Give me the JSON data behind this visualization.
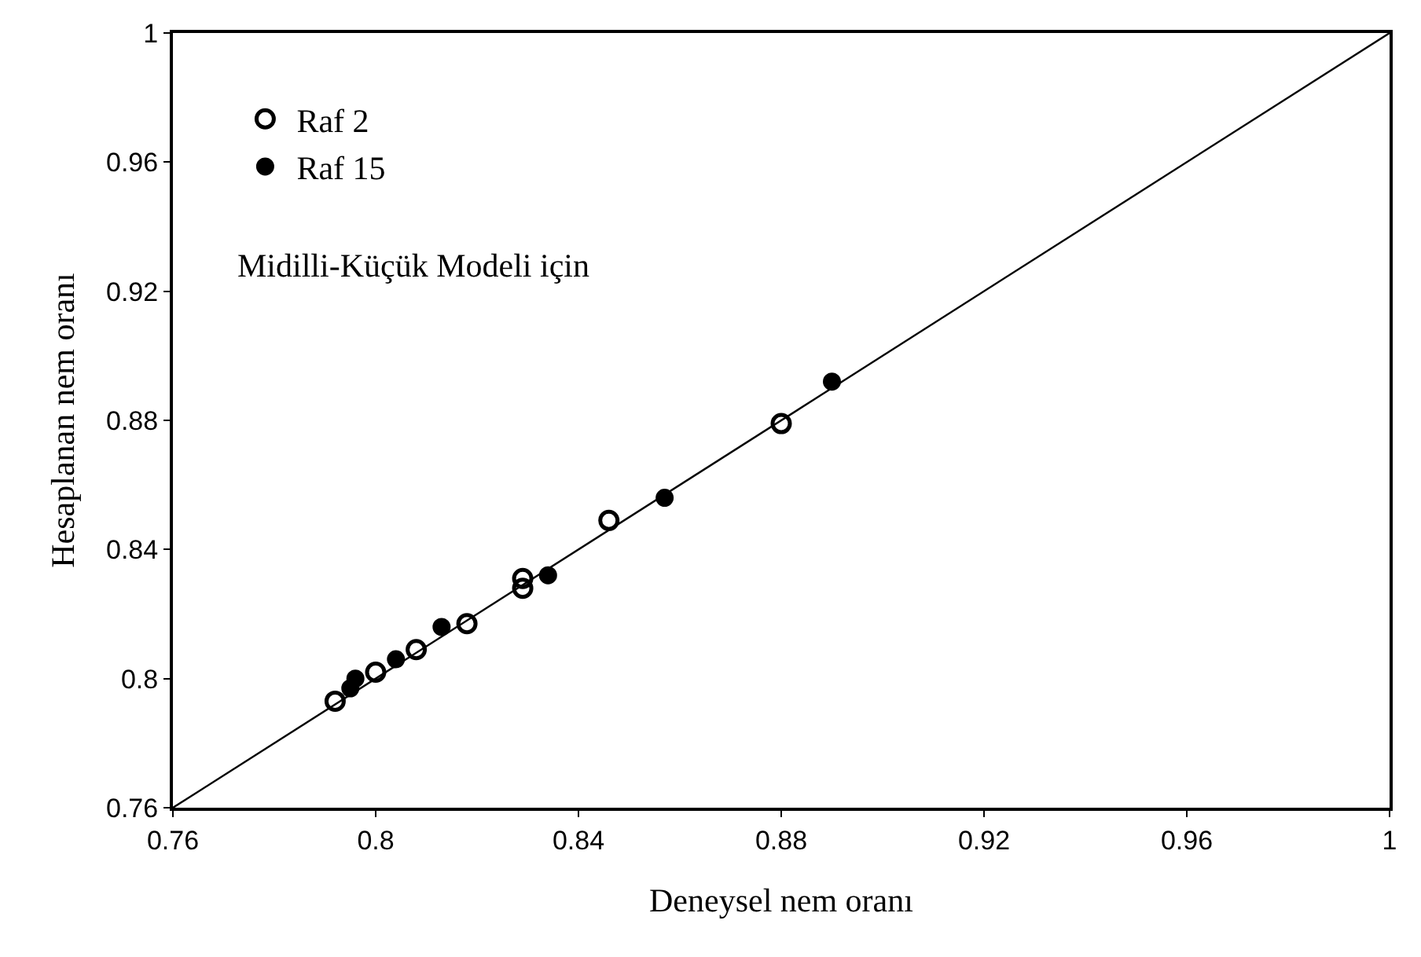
{
  "chart_data": {
    "type": "scatter",
    "xlabel": "Deneysel nem oranı",
    "ylabel": "Hesaplanan nem oranı",
    "annotations": [
      "Midilli-Küçük Modeli için"
    ],
    "xlim": [
      0.76,
      1
    ],
    "ylim": [
      0.76,
      1
    ],
    "xticks": [
      0.76,
      0.8,
      0.84,
      0.88,
      0.92,
      0.96,
      1
    ],
    "yticks": [
      0.76,
      0.8,
      0.84,
      0.88,
      0.92,
      0.96,
      1
    ],
    "legend": "top left",
    "marker": "circle",
    "series": [
      {
        "name": "Raf 2",
        "color": "#000000",
        "x": [
          0.792,
          0.8,
          0.808,
          0.818,
          0.829,
          0.829,
          0.846,
          0.88
        ],
        "values": [
          0.793,
          0.802,
          0.809,
          0.817,
          0.828,
          0.831,
          0.849,
          0.879
        ]
      },
      {
        "name": "Raf 15",
        "color": "#000000",
        "x": [
          0.795,
          0.796,
          0.804,
          0.813,
          0.834,
          0.857,
          0.89
        ],
        "values": [
          0.797,
          0.8,
          0.806,
          0.816,
          0.832,
          0.856,
          0.892
        ]
      },
      {
        "type": "line",
        "color": "#000000",
        "marker": "none",
        "x": [
          0.76,
          1
        ],
        "values": [
          0.76,
          1
        ]
      }
    ]
  }
}
